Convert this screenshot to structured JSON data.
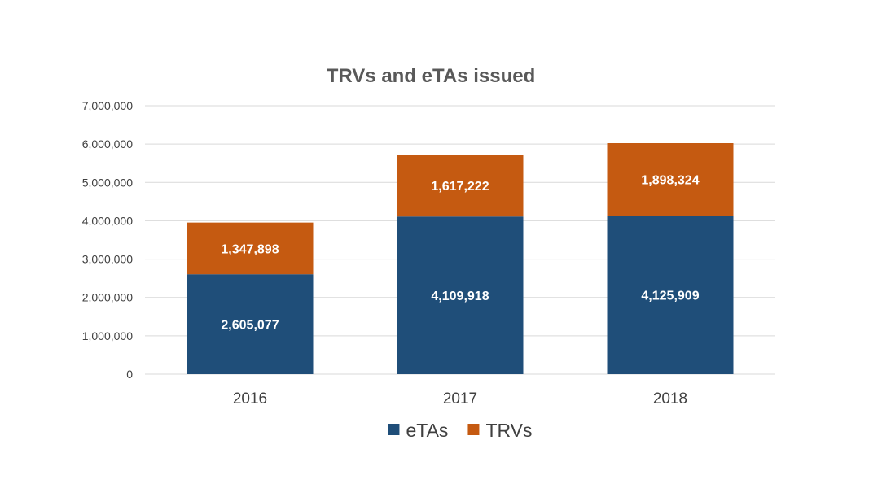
{
  "chart_data": {
    "type": "bar",
    "stacked": true,
    "title": "TRVs and eTAs issued",
    "xlabel": "",
    "ylabel": "",
    "categories": [
      "2016",
      "2017",
      "2018"
    ],
    "series": [
      {
        "name": "eTAs",
        "color": "#1f4e79",
        "values": [
          2605077,
          4109918,
          4125909
        ],
        "labels": [
          "2,605,077",
          "4,109,918",
          "4,125,909"
        ]
      },
      {
        "name": "TRVs",
        "color": "#c55a11",
        "values": [
          1347898,
          1617222,
          1898324
        ],
        "labels": [
          "1,347,898",
          "1,617,222",
          "1,898,324"
        ]
      }
    ],
    "ylim": [
      0,
      7000000
    ],
    "yticks": [
      0,
      1000000,
      2000000,
      3000000,
      4000000,
      5000000,
      6000000,
      7000000
    ],
    "ytick_labels": [
      "0",
      "1,000,000",
      "2,000,000",
      "3,000,000",
      "4,000,000",
      "5,000,000",
      "6,000,000",
      "7,000,000"
    ],
    "grid": true,
    "legend_position": "bottom"
  }
}
